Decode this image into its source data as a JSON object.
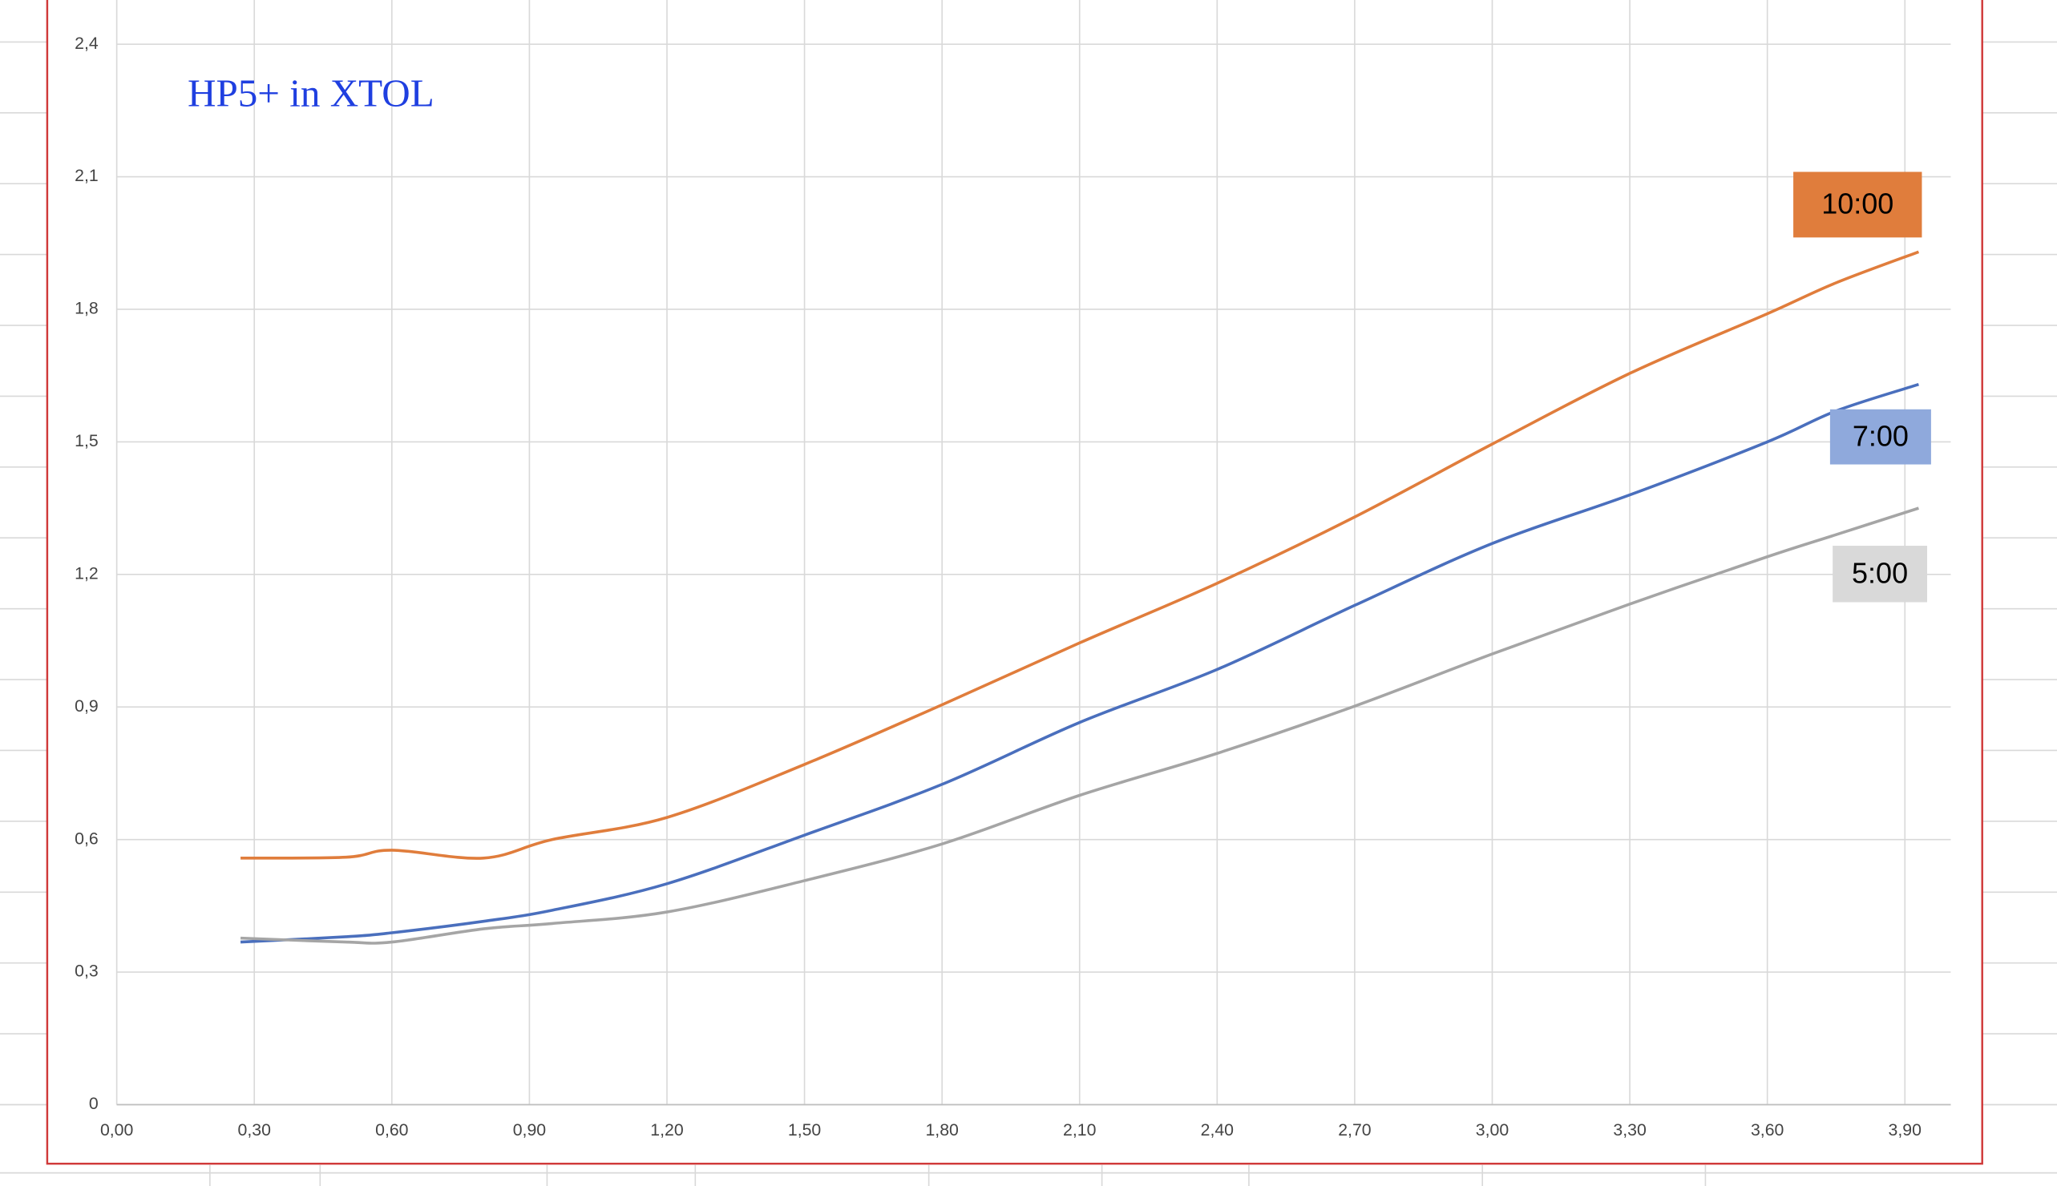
{
  "chart_data": {
    "type": "line",
    "title": "HP5+ in XTOL",
    "x": [
      0.27,
      0.5,
      0.6,
      0.8,
      0.95,
      1.2,
      1.5,
      1.8,
      2.1,
      2.4,
      2.7,
      3.0,
      3.3,
      3.6,
      3.75,
      3.93
    ],
    "series": [
      {
        "name": "10:00",
        "color": "#e07d3c",
        "values": [
          0.558,
          0.56,
          0.576,
          0.558,
          0.6,
          0.65,
          0.77,
          0.905,
          1.045,
          1.18,
          1.33,
          1.495,
          1.655,
          1.79,
          1.86,
          1.93
        ]
      },
      {
        "name": "7:00",
        "color": "#4a6fbd",
        "values": [
          0.368,
          0.38,
          0.389,
          0.415,
          0.44,
          0.5,
          0.61,
          0.725,
          0.865,
          0.985,
          1.13,
          1.27,
          1.38,
          1.5,
          1.57,
          1.63
        ]
      },
      {
        "name": "5:00",
        "color": "#a5a5a5",
        "values": [
          0.377,
          0.368,
          0.368,
          0.398,
          0.41,
          0.436,
          0.507,
          0.59,
          0.7,
          0.795,
          0.902,
          1.02,
          1.133,
          1.24,
          1.29,
          1.35
        ]
      }
    ],
    "xlim": [
      0,
      4.0
    ],
    "ylim": [
      0,
      2.5
    ],
    "xticks": [
      {
        "value": 0,
        "label": "0,00"
      },
      {
        "value": 0.3,
        "label": "0,30"
      },
      {
        "value": 0.6,
        "label": "0,60"
      },
      {
        "value": 0.9,
        "label": "0,90"
      },
      {
        "value": 1.2,
        "label": "1,20"
      },
      {
        "value": 1.5,
        "label": "1,50"
      },
      {
        "value": 1.8,
        "label": "1,80"
      },
      {
        "value": 2.1,
        "label": "2,10"
      },
      {
        "value": 2.4,
        "label": "2,40"
      },
      {
        "value": 2.7,
        "label": "2,70"
      },
      {
        "value": 3.0,
        "label": "3,00"
      },
      {
        "value": 3.3,
        "label": "3,30"
      },
      {
        "value": 3.6,
        "label": "3,60"
      },
      {
        "value": 3.9,
        "label": "3,90"
      }
    ],
    "yticks": [
      0,
      {
        "value": 0.3,
        "label": "0,3"
      },
      {
        "value": 0.6,
        "label": "0,6"
      },
      {
        "value": 0.9,
        "label": "0,9"
      },
      {
        "value": 1.2,
        "label": "1,2"
      },
      {
        "value": 1.5,
        "label": "1,5"
      },
      {
        "value": 1.8,
        "label": "1,8"
      },
      {
        "value": 2.1,
        "label": "2,1"
      },
      {
        "value": 2.4,
        "label": "2,4"
      }
    ],
    "grid": true
  }
}
